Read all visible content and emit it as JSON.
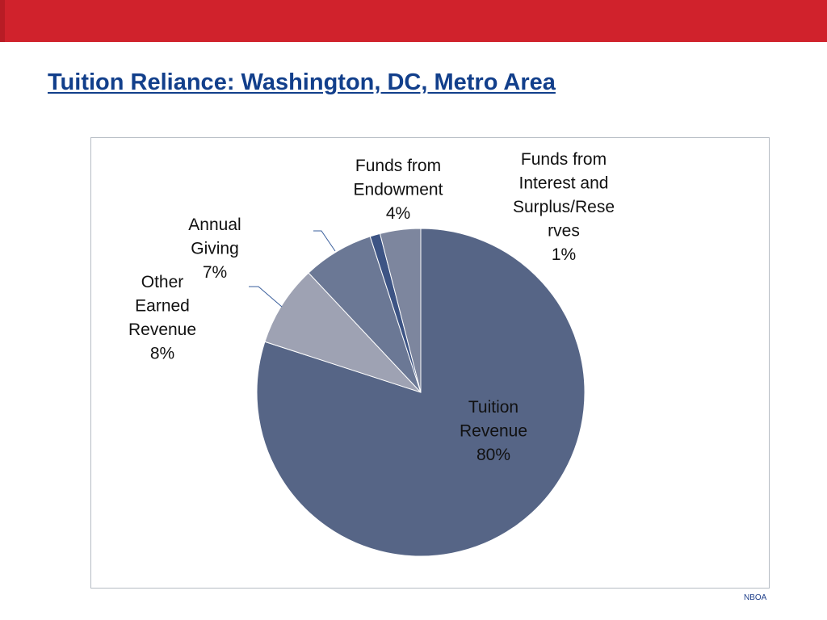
{
  "slide": {
    "title": "Tuition Reliance: Washington, DC, Metro Area",
    "footer": "NBOA",
    "bar_color": "#d0222c",
    "title_color": "#123f8b"
  },
  "chart_data": {
    "type": "pie",
    "title": "",
    "unit": "%",
    "start_angle_deg": 0,
    "direction": "clockwise",
    "slices": [
      {
        "name": "Tuition Revenue",
        "label_lines": [
          "Tuition",
          "Revenue"
        ],
        "value": 80,
        "value_label": "80%",
        "color": "#566586"
      },
      {
        "name": "Other Earned Revenue",
        "label_lines": [
          "Other",
          "Earned",
          "Revenue"
        ],
        "value": 8,
        "value_label": "8%",
        "color": "#9ea2b3"
      },
      {
        "name": "Annual Giving",
        "label_lines": [
          "Annual",
          "Giving"
        ],
        "value": 7,
        "value_label": "7%",
        "color": "#6b7895"
      },
      {
        "name": "Funds from Interest and Surplus/Reserves",
        "label_lines": [
          "Funds from",
          "Interest and",
          "Surplus/Rese",
          "rves"
        ],
        "value": 1,
        "value_label": "1%",
        "color": "#3d5484"
      },
      {
        "name": "Funds from Endowment",
        "label_lines": [
          "Funds from",
          "Endowment"
        ],
        "value": 4,
        "value_label": "4%",
        "color": "#7d869e"
      }
    ]
  }
}
